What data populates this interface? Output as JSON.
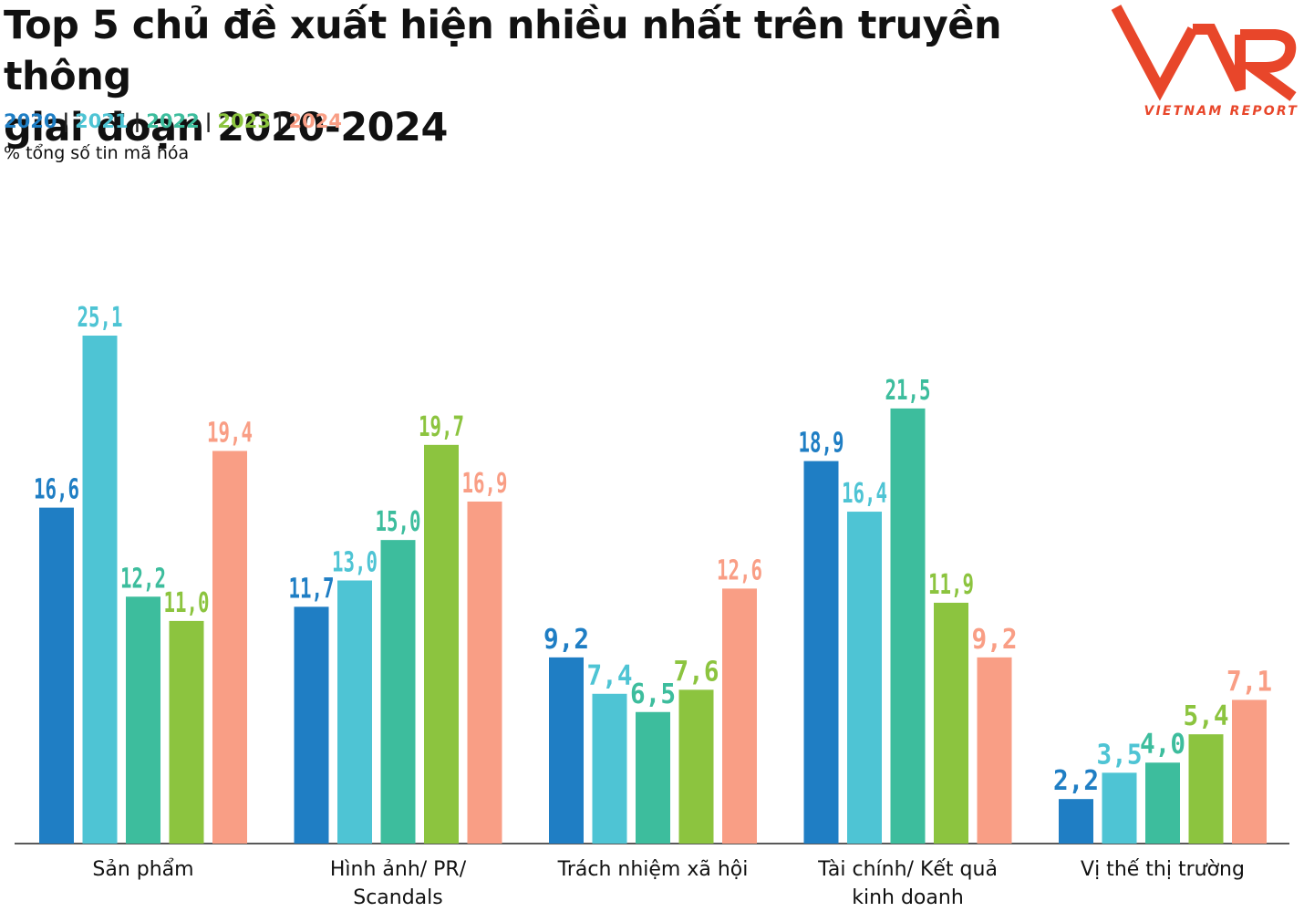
{
  "title_lines": [
    "Top 5 chủ đề xuất hiện nhiều nhất trên truyền thông",
    "giai đoạn 2020-2024"
  ],
  "unit_text": "% tổng số tin mã hóa",
  "logo": {
    "mark": "VNR",
    "text": "VIETNAM REPORT",
    "color": "#e8462a"
  },
  "legend_separator": "|",
  "chart_data": {
    "type": "bar",
    "categories": [
      [
        "Sản phẩm"
      ],
      [
        "Hình ảnh/ PR/",
        "Scandals"
      ],
      [
        "Trách nhiệm xã hội"
      ],
      [
        "Tài chính/ Kết quả",
        "kinh doanh"
      ],
      [
        "Vị thế thị trường"
      ]
    ],
    "series": [
      {
        "name": "2020",
        "color": "#1f7ec4",
        "values": [
          16.6,
          11.7,
          9.2,
          18.9,
          2.2
        ],
        "labels": [
          "16,6",
          "11,7",
          "9,2",
          "18,9",
          "2,2"
        ]
      },
      {
        "name": "2021",
        "color": "#4ec4d4",
        "values": [
          25.1,
          13.0,
          7.4,
          16.4,
          3.5
        ],
        "labels": [
          "25,1",
          "13,0",
          "7,4",
          "16,4",
          "3,5"
        ]
      },
      {
        "name": "2022",
        "color": "#3dbd9d",
        "values": [
          12.2,
          15.0,
          6.5,
          21.5,
          4.0
        ],
        "labels": [
          "12,2",
          "15,0",
          "6,5",
          "21,5",
          "4,0"
        ]
      },
      {
        "name": "2023",
        "color": "#8cc43f",
        "values": [
          11.0,
          19.7,
          7.6,
          11.9,
          5.4
        ],
        "labels": [
          "11,0",
          "19,7",
          "7,6",
          "11,9",
          "5,4"
        ]
      },
      {
        "name": "2024",
        "color": "#f99e85",
        "values": [
          19.4,
          16.9,
          12.6,
          9.2,
          7.1
        ],
        "labels": [
          "19,4",
          "16,9",
          "12,6",
          "9,2",
          "7,1"
        ]
      }
    ],
    "ylim": [
      0,
      25.1
    ],
    "grid": false,
    "legend_position": "top-left"
  }
}
